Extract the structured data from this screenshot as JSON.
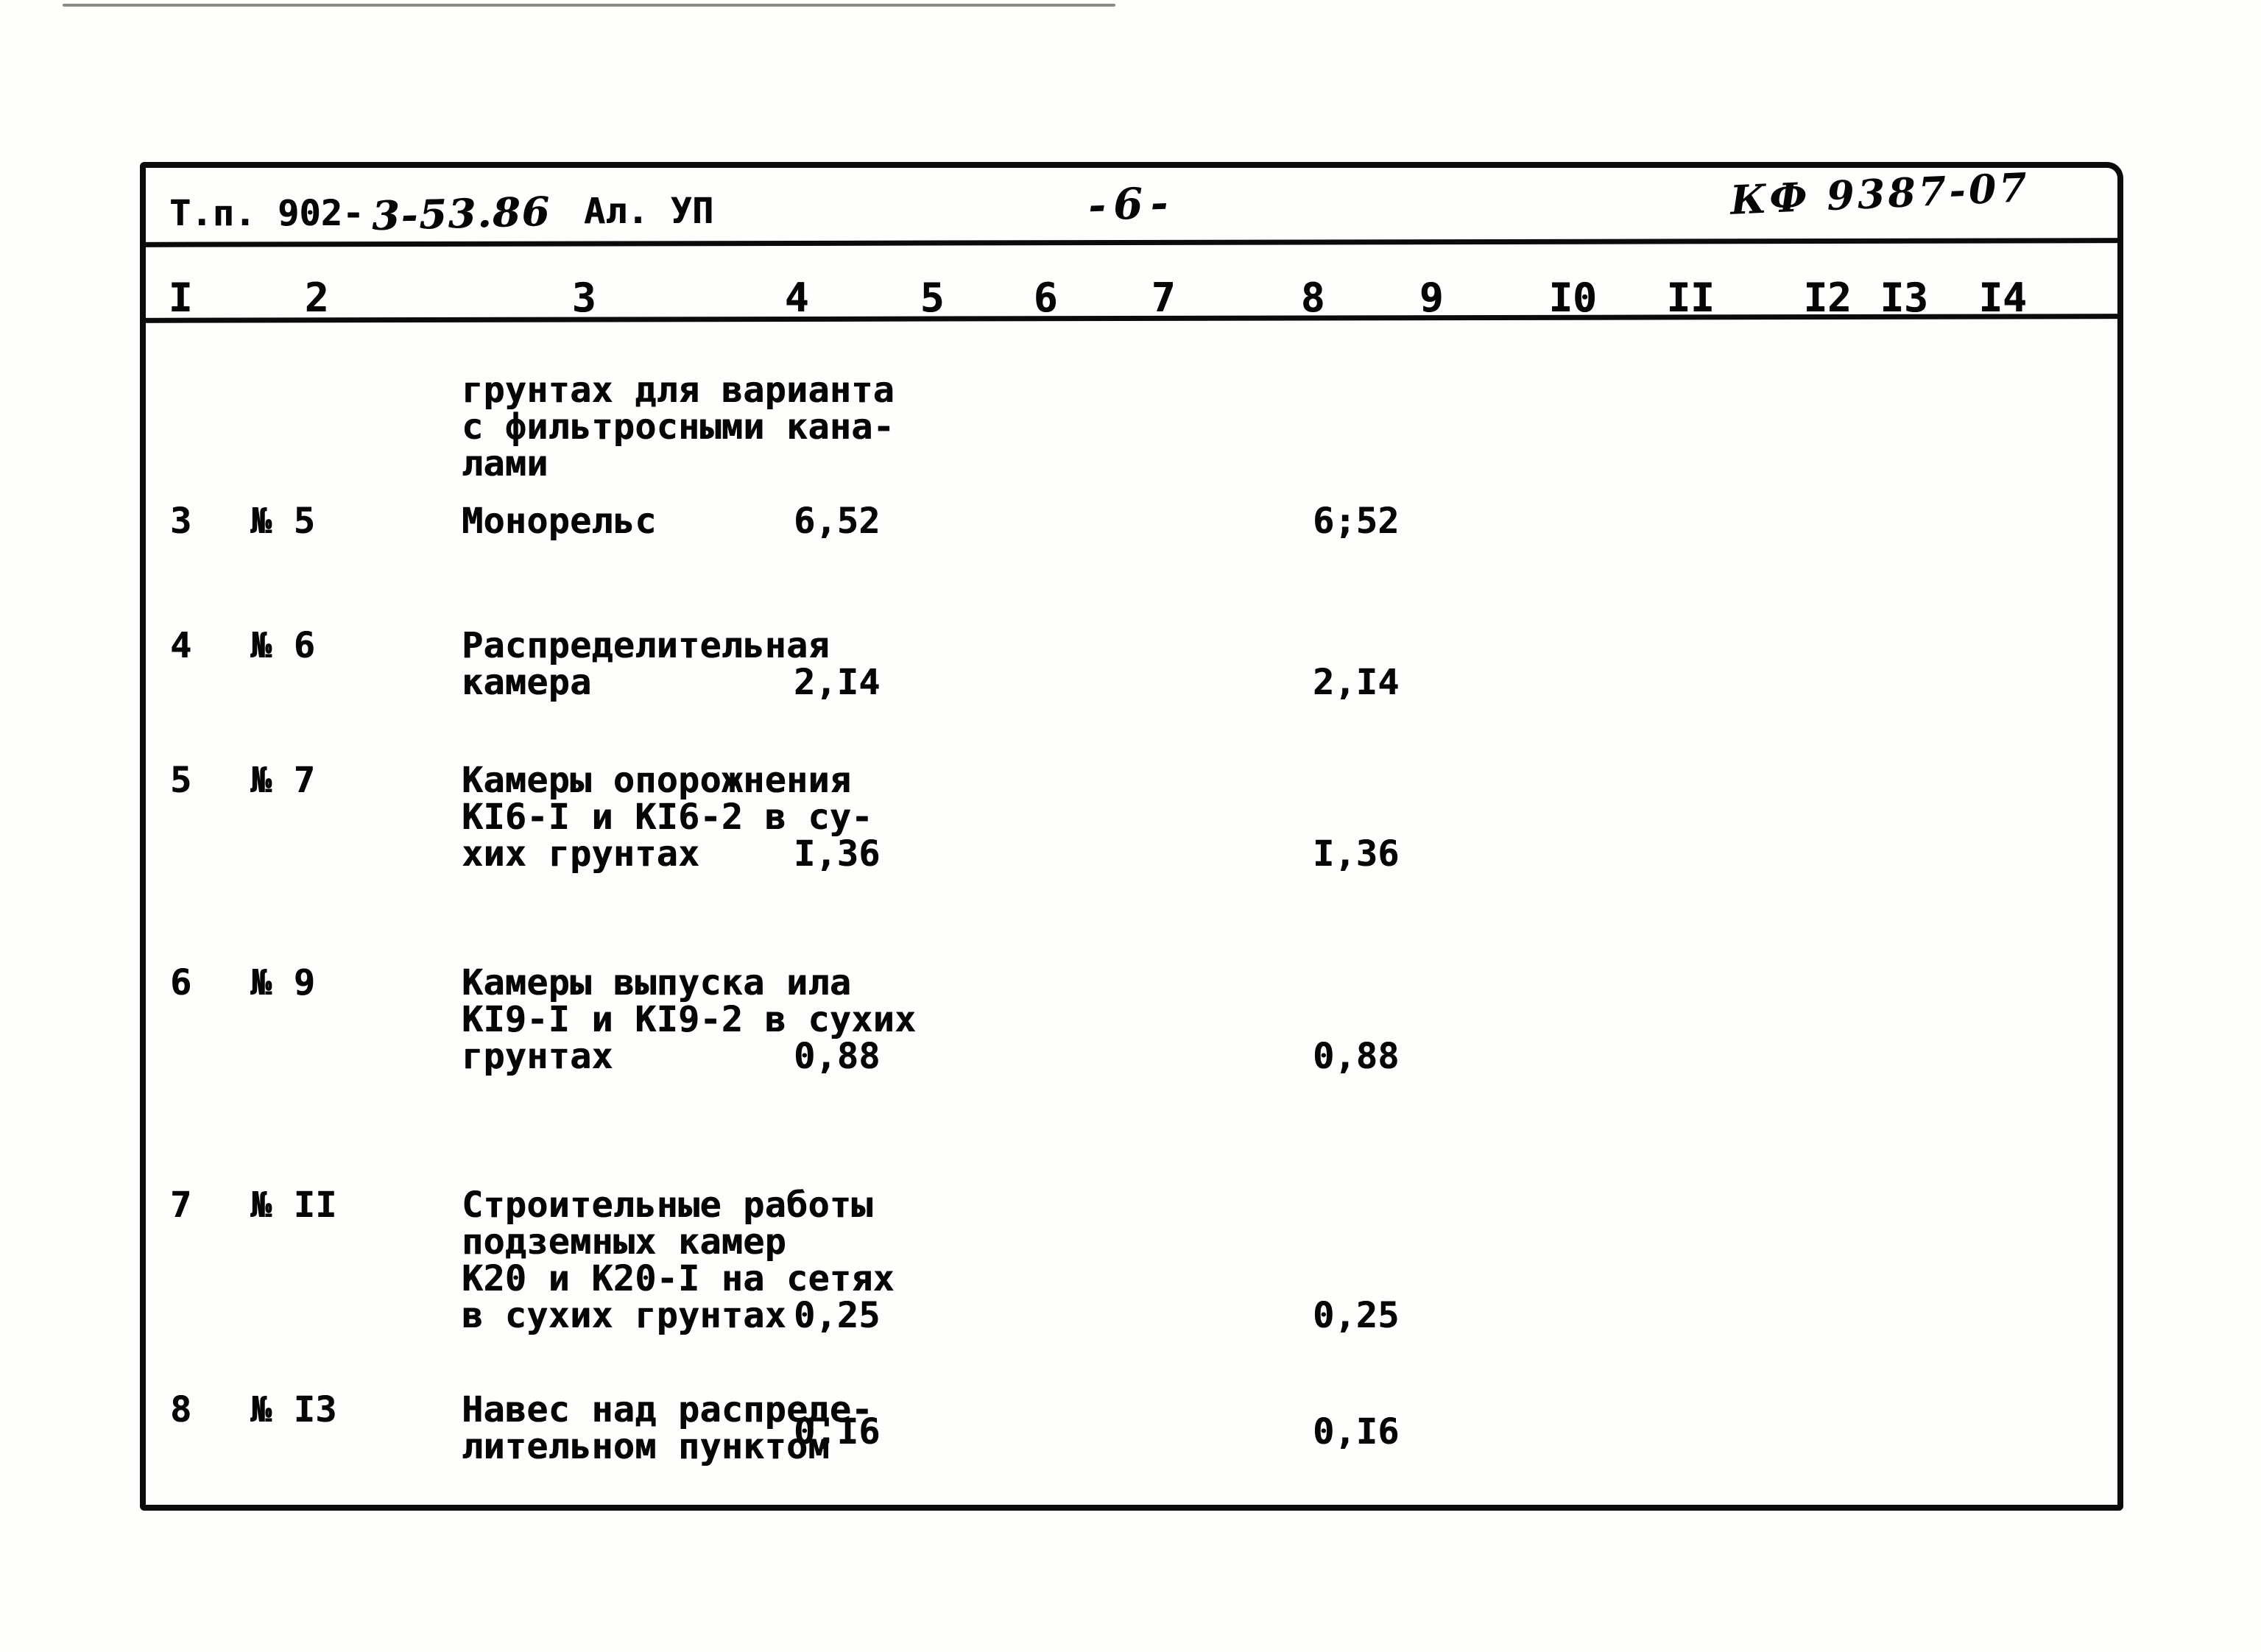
{
  "document": {
    "type_code_typed": "Т.п. 902-",
    "type_code_handwritten": "3-53.86",
    "album": "Ал. УП",
    "page_number": "-6-",
    "stamp": "КФ 9387-07"
  },
  "table": {
    "column_headers": [
      "I",
      "2",
      "3",
      "4",
      "5",
      "6",
      "7",
      "8",
      "9",
      "I0",
      "II",
      "I2",
      "I3",
      "I4"
    ],
    "rows": [
      {
        "num": "",
        "ref": "",
        "desc_lines": [
          "грунтах для варианта",
          "с фильтросными кана-",
          "лами"
        ],
        "col4": "",
        "col4_line": 0,
        "col8": ""
      },
      {
        "num": "3",
        "ref": "№ 5",
        "desc_lines": [
          "Монорельс"
        ],
        "col4": "6,52",
        "col4_line": 0,
        "col8": "6;52"
      },
      {
        "num": "4",
        "ref": "№ 6",
        "desc_lines": [
          "Распределительная",
          "камера"
        ],
        "col4": "2,I4",
        "col4_line": 1,
        "col8": "2,I4"
      },
      {
        "num": "5",
        "ref": "№ 7",
        "desc_lines": [
          "Камеры опорожнения",
          "КI6-I и КI6-2 в су-",
          "хих грунтах"
        ],
        "col4": "I,36",
        "col4_line": 2,
        "col8": "I,36"
      },
      {
        "num": "6",
        "ref": "№ 9",
        "desc_lines": [
          "Камеры выпуска ила",
          "КI9-I и КI9-2 в сухих",
          "грунтах"
        ],
        "col4": "0,88",
        "col4_line": 2,
        "col8": "0,88"
      },
      {
        "num": "7",
        "ref": "№ II",
        "desc_lines": [
          "Строительные работы",
          "подземных камер",
          "К20 и К20-I на сетях",
          "в сухих грунтах"
        ],
        "col4": "0,25",
        "col4_line": 3,
        "col8": "0,25"
      },
      {
        "num": "8",
        "ref": "№ I3",
        "desc_lines": [
          "Навес над распреде-",
          "лительном пунктом"
        ],
        "col4": "0,I6",
        "col4_line": 1,
        "col8": "0,I6"
      }
    ]
  }
}
